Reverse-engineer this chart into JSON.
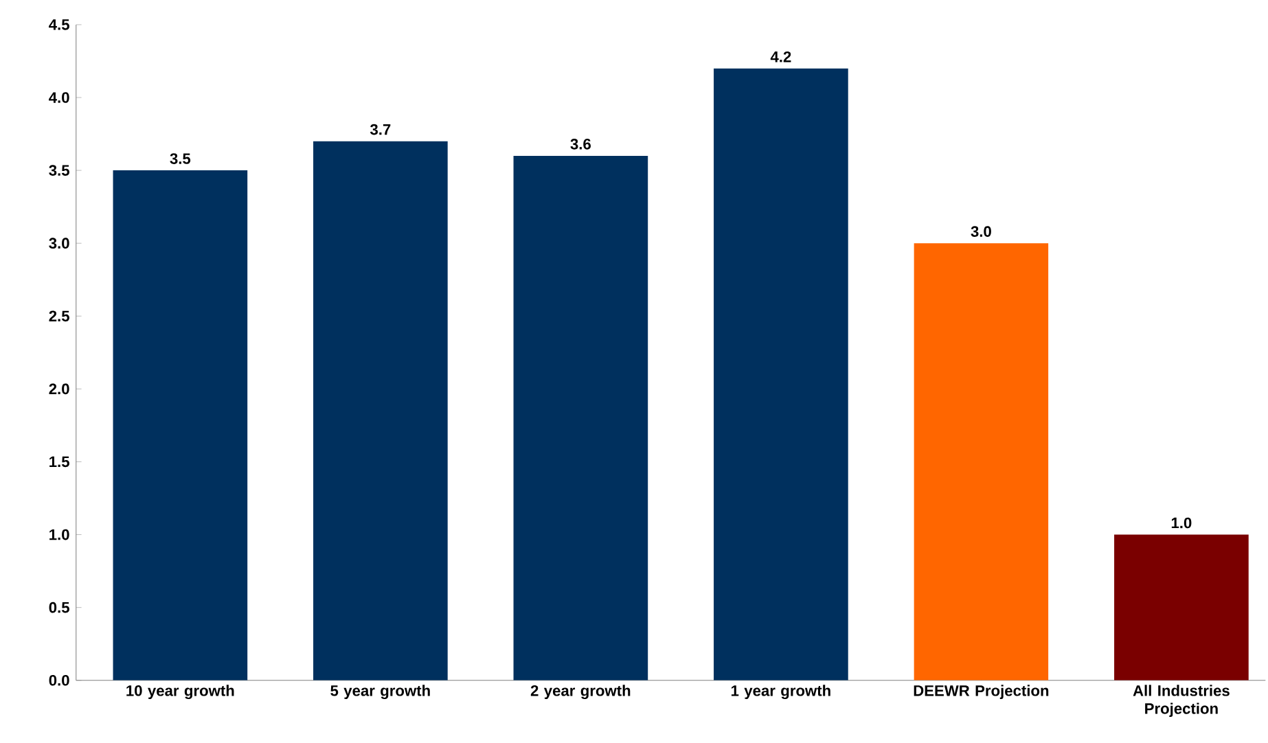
{
  "chart_data": {
    "type": "bar",
    "categories": [
      "10 year growth",
      "5 year growth",
      "2 year growth",
      "1 year growth",
      "DEEWR Projection",
      "All Industries Projection"
    ],
    "values": [
      3.5,
      3.7,
      3.6,
      4.2,
      3.0,
      1.0
    ],
    "colors": [
      "#00305e",
      "#00305e",
      "#00305e",
      "#00305e",
      "#ff6600",
      "#7a0000"
    ],
    "ylim": [
      0,
      4.5
    ],
    "yticks": [
      {
        "value": 0,
        "label": "0.0"
      },
      {
        "value": 0.5,
        "label": "0.5"
      },
      {
        "value": 1,
        "label": "1.0"
      },
      {
        "value": 1.5,
        "label": "1.5"
      },
      {
        "value": 2,
        "label": "2.0"
      },
      {
        "value": 2.5,
        "label": "2.5"
      },
      {
        "value": 3,
        "label": "3.0"
      },
      {
        "value": 3.5,
        "label": "3.5"
      },
      {
        "value": 4,
        "label": "4.0"
      },
      {
        "value": 4.5,
        "label": "4.5"
      }
    ],
    "value_labels": [
      "3.5",
      "3.7",
      "3.6",
      "4.2",
      "3.0",
      "1.0"
    ],
    "grid": false
  }
}
